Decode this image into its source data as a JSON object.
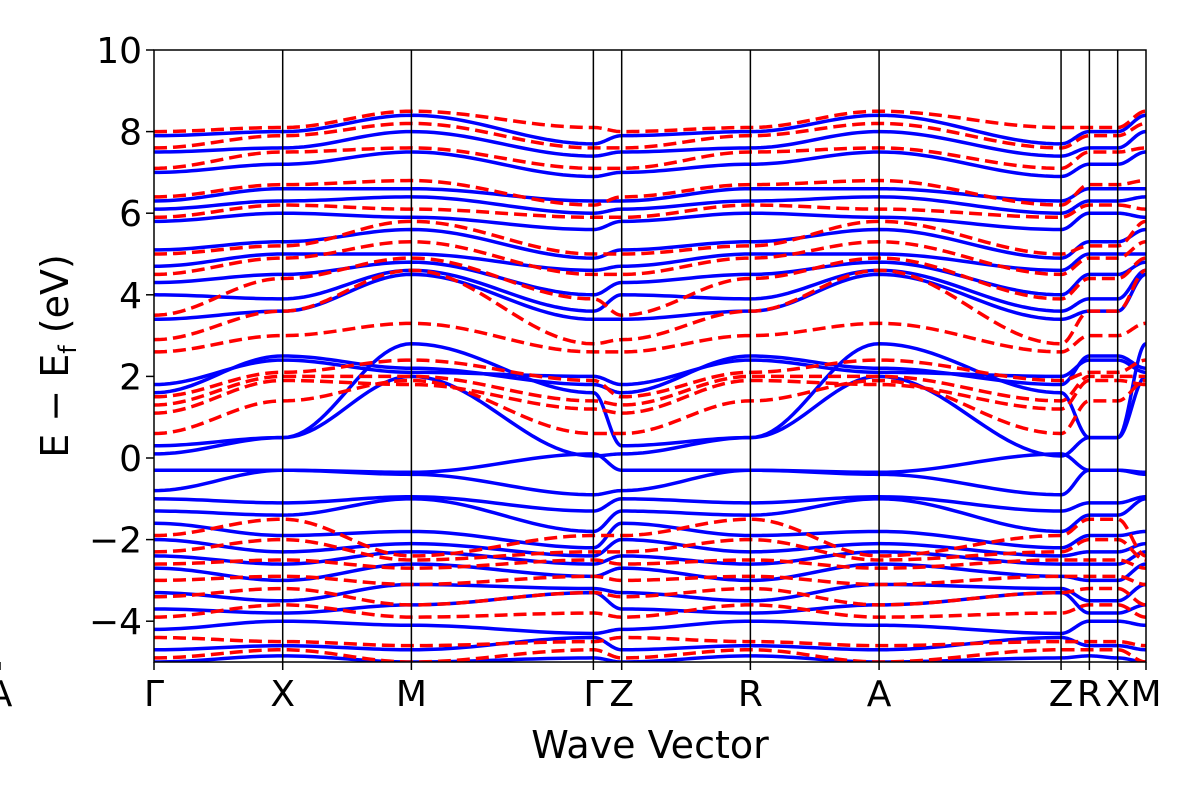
{
  "chart_data": {
    "type": "line",
    "xlabel": "Wave Vector",
    "ylabel_parts": {
      "main": "E − E",
      "sub": "f",
      "unit": " (eV)"
    },
    "ylim": [
      -5,
      10
    ],
    "yticks": [
      -4,
      -2,
      0,
      2,
      4,
      6,
      8,
      10
    ],
    "ytick_labels": [
      "−4",
      "−2",
      "0",
      "2",
      "4",
      "6",
      "8",
      "10"
    ],
    "k_path": {
      "labels": [
        "Γ",
        "X",
        "M",
        "Γ",
        "Z",
        "R",
        "A",
        "Z",
        "R",
        "X",
        "M",
        "A"
      ],
      "tick_labels": [
        "Γ",
        "X",
        "M",
        "ΓZ",
        "R",
        "A",
        "ZR",
        "X",
        "M",
        "A"
      ],
      "segment_lengths": [
        1.0,
        1.0,
        1.414,
        0.22,
        1.0,
        1.0,
        1.414,
        0.22,
        0.22,
        0.22
      ]
    },
    "series": [
      {
        "style": "solid",
        "color": "#0000ff",
        "bands": [
          {
            "node_values": [
              -5.0,
              -4.85,
              -5.0,
              -4.9,
              -5.0,
              -4.85,
              -5.0,
              -4.9,
              -4.85,
              -4.9,
              -5.0
            ]
          },
          {
            "node_values": [
              -4.7,
              -4.6,
              -4.7,
              -4.4,
              -4.7,
              -4.6,
              -4.7,
              -4.4,
              -4.6,
              -4.6,
              -4.7
            ]
          },
          {
            "node_values": [
              -4.2,
              -4.0,
              -4.1,
              -4.3,
              -4.2,
              -4.0,
              -4.1,
              -4.3,
              -4.0,
              -4.0,
              -4.1
            ]
          },
          {
            "node_values": [
              -3.7,
              -3.8,
              -3.6,
              -3.3,
              -3.7,
              -3.8,
              -3.6,
              -3.3,
              -3.8,
              -3.8,
              -3.6
            ]
          },
          {
            "node_values": [
              -3.3,
              -3.5,
              -3.1,
              -3.2,
              -3.3,
              -3.5,
              -3.1,
              -3.2,
              -3.5,
              -3.5,
              -3.1
            ]
          },
          {
            "node_values": [
              -2.7,
              -3.0,
              -2.6,
              -2.9,
              -2.7,
              -3.0,
              -2.6,
              -2.9,
              -3.0,
              -3.0,
              -2.6
            ]
          },
          {
            "node_values": [
              -2.4,
              -2.6,
              -2.3,
              -2.6,
              -2.4,
              -2.6,
              -2.3,
              -2.6,
              -2.6,
              -2.6,
              -2.3
            ]
          },
          {
            "node_values": [
              -2.0,
              -2.3,
              -2.1,
              -2.4,
              -2.0,
              -2.3,
              -2.1,
              -2.4,
              -2.3,
              -2.3,
              -2.1
            ]
          },
          {
            "node_values": [
              -1.6,
              -1.9,
              -1.8,
              -2.2,
              -1.6,
              -1.9,
              -1.8,
              -2.2,
              -1.9,
              -1.9,
              -1.8
            ]
          },
          {
            "node_values": [
              -1.3,
              -1.4,
              -1.0,
              -1.8,
              -1.3,
              -1.4,
              -1.0,
              -1.8,
              -1.4,
              -1.4,
              -1.0
            ]
          },
          {
            "node_values": [
              -1.0,
              -1.1,
              -0.95,
              -1.3,
              -1.0,
              -1.1,
              -0.95,
              -1.3,
              -1.1,
              -1.1,
              -0.95
            ]
          },
          {
            "node_values": [
              -0.8,
              -0.3,
              -0.4,
              -0.9,
              -0.8,
              -0.3,
              -0.4,
              -0.9,
              -0.3,
              -0.3,
              -0.4
            ]
          },
          {
            "node_values": [
              -0.3,
              -0.3,
              -0.35,
              0.1,
              -0.3,
              -0.3,
              -0.35,
              0.1,
              -0.3,
              -0.3,
              -0.35
            ]
          },
          {
            "node_values": [
              0.1,
              0.5,
              2.0,
              0.05,
              0.1,
              0.5,
              2.0,
              0.05,
              0.5,
              0.5,
              2.0
            ]
          },
          {
            "node_values": [
              0.3,
              0.5,
              2.8,
              1.6,
              0.3,
              0.5,
              2.8,
              1.6,
              0.5,
              0.5,
              2.8
            ]
          },
          {
            "node_values": [
              1.6,
              2.5,
              2.2,
              1.8,
              1.6,
              2.5,
              2.2,
              1.8,
              2.5,
              2.5,
              2.2
            ]
          },
          {
            "node_values": [
              1.8,
              2.4,
              2.1,
              2.0,
              1.8,
              2.4,
              2.1,
              2.0,
              2.4,
              2.4,
              2.1
            ]
          },
          {
            "node_values": [
              3.4,
              3.6,
              4.5,
              3.4,
              3.4,
              3.6,
              4.5,
              3.4,
              3.6,
              3.6,
              4.5
            ]
          },
          {
            "node_values": [
              4.0,
              3.9,
              4.6,
              3.6,
              4.0,
              3.9,
              4.6,
              3.6,
              3.9,
              3.9,
              4.6
            ]
          },
          {
            "node_values": [
              4.3,
              4.5,
              4.8,
              4.0,
              4.3,
              4.5,
              4.8,
              4.0,
              4.5,
              4.5,
              4.8
            ]
          },
          {
            "node_values": [
              4.7,
              5.0,
              5.0,
              4.6,
              4.7,
              5.0,
              5.0,
              4.6,
              5.0,
              5.0,
              5.0
            ]
          },
          {
            "node_values": [
              5.1,
              5.3,
              5.6,
              4.9,
              5.1,
              5.3,
              5.6,
              4.9,
              5.3,
              5.3,
              5.6
            ]
          },
          {
            "node_values": [
              5.8,
              6.0,
              5.9,
              5.6,
              5.8,
              6.0,
              5.9,
              5.6,
              6.0,
              6.0,
              5.9
            ]
          },
          {
            "node_values": [
              6.1,
              6.3,
              6.4,
              6.0,
              6.1,
              6.3,
              6.4,
              6.0,
              6.3,
              6.3,
              6.4
            ]
          },
          {
            "node_values": [
              6.3,
              6.6,
              6.6,
              6.3,
              6.3,
              6.6,
              6.6,
              6.3,
              6.6,
              6.6,
              6.6
            ]
          },
          {
            "node_values": [
              7.0,
              7.2,
              7.5,
              6.9,
              7.0,
              7.2,
              7.5,
              6.9,
              7.2,
              7.2,
              7.5
            ]
          },
          {
            "node_values": [
              7.5,
              7.6,
              8.0,
              7.4,
              7.5,
              7.6,
              8.0,
              7.4,
              7.6,
              7.6,
              8.0
            ]
          },
          {
            "node_values": [
              7.9,
              8.0,
              8.4,
              7.7,
              7.9,
              8.0,
              8.4,
              7.7,
              8.0,
              8.0,
              8.4
            ]
          }
        ]
      },
      {
        "style": "dashed",
        "color": "#ff0000",
        "bands": [
          {
            "node_values": [
              -4.9,
              -4.7,
              -5.0,
              -4.7,
              -4.9,
              -4.7,
              -5.0,
              -4.7,
              -4.7,
              -4.7,
              -5.0
            ]
          },
          {
            "node_values": [
              -4.4,
              -4.5,
              -4.6,
              -4.5,
              -4.4,
              -4.5,
              -4.6,
              -4.5,
              -4.5,
              -4.5,
              -4.6
            ]
          },
          {
            "node_values": [
              -3.9,
              -3.6,
              -3.9,
              -3.8,
              -3.9,
              -3.6,
              -3.9,
              -3.8,
              -3.6,
              -3.6,
              -3.9
            ]
          },
          {
            "node_values": [
              -3.4,
              -3.2,
              -3.6,
              -3.3,
              -3.4,
              -3.2,
              -3.6,
              -3.3,
              -3.2,
              -3.2,
              -3.6
            ]
          },
          {
            "node_values": [
              -3.0,
              -2.9,
              -3.1,
              -2.9,
              -3.0,
              -2.9,
              -3.1,
              -2.9,
              -2.9,
              -2.9,
              -3.1
            ]
          },
          {
            "node_values": [
              -2.6,
              -2.5,
              -2.7,
              -2.5,
              -2.6,
              -2.5,
              -2.7,
              -2.5,
              -2.5,
              -2.5,
              -2.7
            ]
          },
          {
            "node_values": [
              -2.3,
              -2.0,
              -2.5,
              -2.3,
              -2.3,
              -2.0,
              -2.5,
              -2.3,
              -2.0,
              -2.0,
              -2.5
            ]
          },
          {
            "node_values": [
              -1.9,
              -1.5,
              -2.4,
              -1.9,
              -1.9,
              -1.5,
              -2.4,
              -1.9,
              -1.5,
              -1.5,
              -2.4
            ]
          },
          {
            "node_values": [
              0.6,
              1.4,
              1.9,
              0.6,
              0.6,
              1.4,
              1.9,
              0.6,
              1.4,
              1.4,
              1.9
            ]
          },
          {
            "node_values": [
              1.1,
              1.9,
              1.8,
              1.2,
              1.1,
              1.9,
              1.8,
              1.2,
              1.9,
              1.9,
              1.8
            ]
          },
          {
            "node_values": [
              1.3,
              2.0,
              2.0,
              1.4,
              1.3,
              2.0,
              2.0,
              1.4,
              2.0,
              2.0,
              2.0
            ]
          },
          {
            "node_values": [
              1.5,
              2.1,
              2.4,
              1.9,
              1.5,
              2.1,
              2.4,
              1.9,
              2.1,
              2.1,
              2.4
            ]
          },
          {
            "node_values": [
              2.6,
              3.0,
              3.3,
              2.6,
              2.6,
              3.0,
              3.3,
              2.6,
              3.0,
              3.0,
              3.3
            ]
          },
          {
            "node_values": [
              2.9,
              3.6,
              4.6,
              2.8,
              2.9,
              3.6,
              4.6,
              2.8,
              3.6,
              3.6,
              4.6
            ]
          },
          {
            "node_values": [
              3.5,
              4.4,
              4.9,
              3.9,
              3.5,
              4.4,
              4.9,
              3.9,
              4.4,
              4.4,
              4.9
            ]
          },
          {
            "node_values": [
              4.5,
              4.9,
              5.3,
              4.5,
              4.5,
              4.9,
              5.3,
              4.5,
              4.9,
              4.9,
              5.3
            ]
          },
          {
            "node_values": [
              5.0,
              5.2,
              5.8,
              5.0,
              5.0,
              5.2,
              5.8,
              5.0,
              5.2,
              5.2,
              5.8
            ]
          },
          {
            "node_values": [
              5.9,
              6.2,
              6.1,
              5.9,
              5.9,
              6.2,
              6.1,
              5.9,
              6.2,
              6.2,
              6.1
            ]
          },
          {
            "node_values": [
              6.4,
              6.7,
              6.8,
              6.2,
              6.4,
              6.7,
              6.8,
              6.2,
              6.7,
              6.7,
              6.8
            ]
          },
          {
            "node_values": [
              7.1,
              7.5,
              7.6,
              7.1,
              7.1,
              7.5,
              7.6,
              7.1,
              7.5,
              7.5,
              7.6
            ]
          },
          {
            "node_values": [
              7.6,
              7.9,
              8.2,
              7.6,
              7.6,
              7.9,
              8.2,
              7.6,
              7.9,
              7.9,
              8.2
            ]
          },
          {
            "node_values": [
              8.0,
              8.1,
              8.5,
              8.1,
              8.0,
              8.1,
              8.5,
              8.1,
              8.1,
              8.1,
              8.5
            ]
          }
        ]
      }
    ],
    "grid": false
  }
}
